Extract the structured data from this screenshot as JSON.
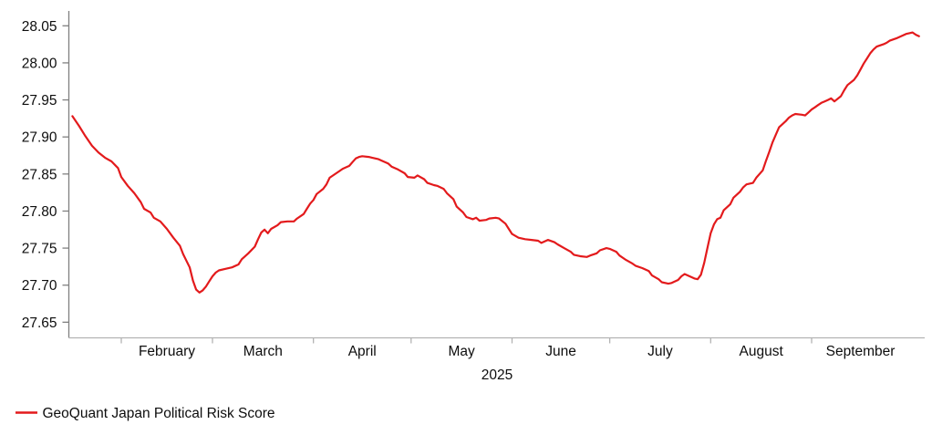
{
  "chart_data": {
    "type": "line",
    "title": "",
    "legend": {
      "label": "GeoQuant Japan Political Risk Score",
      "position": "bottom-left"
    },
    "grid": false,
    "colors": {
      "line": "#e31a1c",
      "y_axis": "#808080",
      "x_axis": "#b3b3b3",
      "text": "#0d0d0d",
      "background": "#ffffff"
    },
    "y_axis": {
      "tick_labels": [
        "28.05",
        "28.00",
        "27.95",
        "27.90",
        "27.85",
        "27.80",
        "27.75",
        "27.70",
        "27.65"
      ],
      "range": [
        27.65,
        28.05
      ]
    },
    "x_axis": {
      "year_label": "2025",
      "months": [
        {
          "label": "February",
          "start": "2025-02-01",
          "end": "2025-03-01"
        },
        {
          "label": "March",
          "start": "2025-03-01",
          "end": "2025-04-01"
        },
        {
          "label": "April",
          "start": "2025-04-01",
          "end": "2025-05-01"
        },
        {
          "label": "May",
          "start": "2025-05-01",
          "end": "2025-06-01"
        },
        {
          "label": "June",
          "start": "2025-06-01",
          "end": "2025-07-01"
        },
        {
          "label": "July",
          "start": "2025-07-01",
          "end": "2025-08-01"
        },
        {
          "label": "August",
          "start": "2025-08-01",
          "end": "2025-09-01"
        },
        {
          "label": "September",
          "start": "2025-09-01",
          "end": "2025-10-01"
        }
      ]
    },
    "series": [
      {
        "name": "GeoQuant Japan Political Risk Score",
        "color": "#e31a1c",
        "points": [
          [
            "2025-01-17",
            27.928
          ],
          [
            "2025-01-19",
            27.915
          ],
          [
            "2025-01-21",
            27.901
          ],
          [
            "2025-01-23",
            27.888
          ],
          [
            "2025-01-25",
            27.879
          ],
          [
            "2025-01-27",
            27.872
          ],
          [
            "2025-01-29",
            27.867
          ],
          [
            "2025-01-31",
            27.858
          ],
          [
            "2025-02-01",
            27.846
          ],
          [
            "2025-02-03",
            27.834
          ],
          [
            "2025-02-05",
            27.824
          ],
          [
            "2025-02-07",
            27.812
          ],
          [
            "2025-02-08",
            27.803
          ],
          [
            "2025-02-10",
            27.798
          ],
          [
            "2025-02-11",
            27.791
          ],
          [
            "2025-02-13",
            27.786
          ],
          [
            "2025-02-15",
            27.776
          ],
          [
            "2025-02-17",
            27.764
          ],
          [
            "2025-02-19",
            27.753
          ],
          [
            "2025-02-20",
            27.742
          ],
          [
            "2025-02-22",
            27.724
          ],
          [
            "2025-02-23",
            27.706
          ],
          [
            "2025-02-24",
            27.694
          ],
          [
            "2025-02-25",
            27.69
          ],
          [
            "2025-02-26",
            27.693
          ],
          [
            "2025-02-27",
            27.698
          ],
          [
            "2025-02-28",
            27.705
          ],
          [
            "2025-03-01",
            27.712
          ],
          [
            "2025-03-02",
            27.717
          ],
          [
            "2025-03-03",
            27.72
          ],
          [
            "2025-03-05",
            27.722
          ],
          [
            "2025-03-07",
            27.724
          ],
          [
            "2025-03-09",
            27.728
          ],
          [
            "2025-03-10",
            27.735
          ],
          [
            "2025-03-12",
            27.743
          ],
          [
            "2025-03-14",
            27.752
          ],
          [
            "2025-03-15",
            27.762
          ],
          [
            "2025-03-16",
            27.771
          ],
          [
            "2025-03-17",
            27.775
          ],
          [
            "2025-03-18",
            27.77
          ],
          [
            "2025-03-19",
            27.776
          ],
          [
            "2025-03-21",
            27.781
          ],
          [
            "2025-03-22",
            27.785
          ],
          [
            "2025-03-24",
            27.786
          ],
          [
            "2025-03-26",
            27.786
          ],
          [
            "2025-03-27",
            27.79
          ],
          [
            "2025-03-29",
            27.796
          ],
          [
            "2025-03-30",
            27.803
          ],
          [
            "2025-03-31",
            27.81
          ],
          [
            "2025-04-01",
            27.815
          ],
          [
            "2025-04-02",
            27.823
          ],
          [
            "2025-04-04",
            27.83
          ],
          [
            "2025-04-05",
            27.836
          ],
          [
            "2025-04-06",
            27.845
          ],
          [
            "2025-04-08",
            27.851
          ],
          [
            "2025-04-09",
            27.854
          ],
          [
            "2025-04-10",
            27.857
          ],
          [
            "2025-04-12",
            27.861
          ],
          [
            "2025-04-13",
            27.866
          ],
          [
            "2025-04-14",
            27.871
          ],
          [
            "2025-04-15",
            27.873
          ],
          [
            "2025-04-16",
            27.874
          ],
          [
            "2025-04-18",
            27.873
          ],
          [
            "2025-04-19",
            27.872
          ],
          [
            "2025-04-21",
            27.87
          ],
          [
            "2025-04-22",
            27.868
          ],
          [
            "2025-04-24",
            27.864
          ],
          [
            "2025-04-25",
            27.86
          ],
          [
            "2025-04-27",
            27.856
          ],
          [
            "2025-04-29",
            27.851
          ],
          [
            "2025-04-30",
            27.846
          ],
          [
            "2025-05-02",
            27.845
          ],
          [
            "2025-05-03",
            27.848
          ],
          [
            "2025-05-05",
            27.843
          ],
          [
            "2025-05-06",
            27.838
          ],
          [
            "2025-05-08",
            27.835
          ],
          [
            "2025-05-09",
            27.834
          ],
          [
            "2025-05-11",
            27.83
          ],
          [
            "2025-05-12",
            27.824
          ],
          [
            "2025-05-14",
            27.816
          ],
          [
            "2025-05-15",
            27.806
          ],
          [
            "2025-05-17",
            27.798
          ],
          [
            "2025-05-18",
            27.792
          ],
          [
            "2025-05-20",
            27.789
          ],
          [
            "2025-05-21",
            27.791
          ],
          [
            "2025-05-22",
            27.787
          ],
          [
            "2025-05-24",
            27.788
          ],
          [
            "2025-05-25",
            27.79
          ],
          [
            "2025-05-27",
            27.791
          ],
          [
            "2025-05-28",
            27.79
          ],
          [
            "2025-05-30",
            27.783
          ],
          [
            "2025-05-31",
            27.776
          ],
          [
            "2025-06-01",
            27.769
          ],
          [
            "2025-06-03",
            27.764
          ],
          [
            "2025-06-05",
            27.762
          ],
          [
            "2025-06-07",
            27.761
          ],
          [
            "2025-06-09",
            27.76
          ],
          [
            "2025-06-10",
            27.757
          ],
          [
            "2025-06-12",
            27.761
          ],
          [
            "2025-06-14",
            27.758
          ],
          [
            "2025-06-15",
            27.755
          ],
          [
            "2025-06-17",
            27.75
          ],
          [
            "2025-06-19",
            27.745
          ],
          [
            "2025-06-20",
            27.741
          ],
          [
            "2025-06-22",
            27.739
          ],
          [
            "2025-06-24",
            27.738
          ],
          [
            "2025-06-25",
            27.74
          ],
          [
            "2025-06-27",
            27.743
          ],
          [
            "2025-06-28",
            27.747
          ],
          [
            "2025-06-30",
            27.75
          ],
          [
            "2025-07-01",
            27.749
          ],
          [
            "2025-07-03",
            27.745
          ],
          [
            "2025-07-04",
            27.74
          ],
          [
            "2025-07-06",
            27.734
          ],
          [
            "2025-07-08",
            27.729
          ],
          [
            "2025-07-09",
            27.726
          ],
          [
            "2025-07-11",
            27.723
          ],
          [
            "2025-07-13",
            27.719
          ],
          [
            "2025-07-14",
            27.713
          ],
          [
            "2025-07-16",
            27.708
          ],
          [
            "2025-07-17",
            27.704
          ],
          [
            "2025-07-19",
            27.702
          ],
          [
            "2025-07-20",
            27.703
          ],
          [
            "2025-07-22",
            27.707
          ],
          [
            "2025-07-23",
            27.712
          ],
          [
            "2025-07-24",
            27.715
          ],
          [
            "2025-07-25",
            27.713
          ],
          [
            "2025-07-27",
            27.709
          ],
          [
            "2025-07-28",
            27.708
          ],
          [
            "2025-07-29",
            27.714
          ],
          [
            "2025-07-30",
            27.73
          ],
          [
            "2025-07-31",
            27.75
          ],
          [
            "2025-08-01",
            27.77
          ],
          [
            "2025-08-02",
            27.782
          ],
          [
            "2025-08-03",
            27.789
          ],
          [
            "2025-08-04",
            27.791
          ],
          [
            "2025-08-05",
            27.801
          ],
          [
            "2025-08-07",
            27.809
          ],
          [
            "2025-08-08",
            27.818
          ],
          [
            "2025-08-10",
            27.826
          ],
          [
            "2025-08-11",
            27.832
          ],
          [
            "2025-08-12",
            27.836
          ],
          [
            "2025-08-14",
            27.838
          ],
          [
            "2025-08-15",
            27.845
          ],
          [
            "2025-08-17",
            27.855
          ],
          [
            "2025-08-18",
            27.868
          ],
          [
            "2025-08-19",
            27.88
          ],
          [
            "2025-08-20",
            27.893
          ],
          [
            "2025-08-21",
            27.903
          ],
          [
            "2025-08-22",
            27.913
          ],
          [
            "2025-08-24",
            27.921
          ],
          [
            "2025-08-25",
            27.926
          ],
          [
            "2025-08-26",
            27.929
          ],
          [
            "2025-08-27",
            27.931
          ],
          [
            "2025-08-29",
            27.93
          ],
          [
            "2025-08-30",
            27.929
          ],
          [
            "2025-08-31",
            27.933
          ],
          [
            "2025-09-01",
            27.937
          ],
          [
            "2025-09-02",
            27.94
          ],
          [
            "2025-09-03",
            27.943
          ],
          [
            "2025-09-04",
            27.946
          ],
          [
            "2025-09-05",
            27.948
          ],
          [
            "2025-09-06",
            27.95
          ],
          [
            "2025-09-07",
            27.952
          ],
          [
            "2025-09-08",
            27.948
          ],
          [
            "2025-09-10",
            27.955
          ],
          [
            "2025-09-11",
            27.963
          ],
          [
            "2025-09-12",
            27.97
          ],
          [
            "2025-09-14",
            27.977
          ],
          [
            "2025-09-15",
            27.983
          ],
          [
            "2025-09-16",
            27.991
          ],
          [
            "2025-09-17",
            27.999
          ],
          [
            "2025-09-18",
            28.006
          ],
          [
            "2025-09-19",
            28.013
          ],
          [
            "2025-09-20",
            28.018
          ],
          [
            "2025-09-21",
            28.022
          ],
          [
            "2025-09-23",
            28.025
          ],
          [
            "2025-09-24",
            28.027
          ],
          [
            "2025-09-25",
            28.03
          ],
          [
            "2025-09-27",
            28.033
          ],
          [
            "2025-09-28",
            28.035
          ],
          [
            "2025-09-29",
            28.037
          ],
          [
            "2025-09-30",
            28.039
          ],
          [
            "2025-10-01",
            28.04
          ],
          [
            "2025-10-02",
            28.041
          ],
          [
            "2025-10-03",
            28.038
          ],
          [
            "2025-10-04",
            28.036
          ]
        ]
      }
    ]
  }
}
